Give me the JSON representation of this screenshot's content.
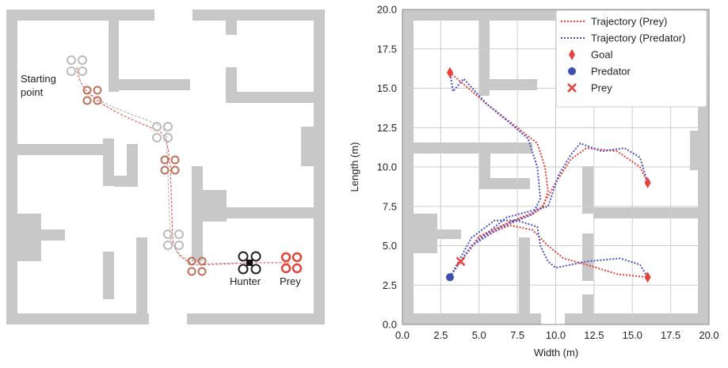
{
  "illustration": {
    "labels": {
      "start": "Starting\npoint",
      "hunter": "Hunter",
      "prey": "Prey"
    }
  },
  "chart_data": {
    "type": "line",
    "xlabel": "Width (m)",
    "ylabel": "Length (m)",
    "xlim": [
      0,
      20
    ],
    "ylim": [
      0,
      20
    ],
    "xticks": [
      {
        "value": 0,
        "label": "0.0"
      },
      2.5,
      {
        "value": 5,
        "label": "5.0"
      },
      7.5,
      {
        "value": 10,
        "label": "10.0"
      },
      12.5,
      {
        "value": 15,
        "label": "15.0"
      },
      17.5,
      {
        "value": 20,
        "label": "20.0"
      }
    ],
    "yticks": [
      {
        "value": 0,
        "label": "0.0"
      },
      2.5,
      {
        "value": 5,
        "label": "5.0"
      },
      7.5,
      {
        "value": 10,
        "label": "10.0"
      },
      12.5,
      {
        "value": 15,
        "label": "15.0"
      },
      17.5,
      {
        "value": 20,
        "label": "20.0"
      }
    ],
    "grid": true,
    "legend": "upper right",
    "series": [
      {
        "name": "Trajectory (Prey)",
        "color": "#e8413a",
        "style": "dotted",
        "x": [
          3.8,
          5,
          7,
          8.5,
          9.2,
          9.5,
          9.3,
          8.8,
          7.5,
          5.5,
          3.1,
          null,
          3.8,
          5,
          7,
          9,
          10,
          11,
          12,
          14,
          15.5,
          16,
          null,
          3.8,
          5,
          7,
          8.5,
          9.5,
          10.5,
          12,
          14,
          16
        ],
        "values": [
          4,
          5.5,
          6.5,
          7,
          7.5,
          8.5,
          10,
          11.5,
          12.5,
          14,
          16,
          null,
          4,
          5.6,
          6.5,
          7.3,
          9,
          10.5,
          11.2,
          11,
          10,
          9,
          null,
          4,
          5.5,
          6.3,
          6,
          5,
          4.2,
          3.8,
          3.2,
          3
        ]
      },
      {
        "name": "Trajectory (Predator)",
        "color": "#4a50c8",
        "style": "dotted",
        "x": [
          3.1,
          4.5,
          6.5,
          8.5,
          9,
          8.8,
          8.2,
          7,
          5.5,
          4,
          3.3,
          3.1,
          null,
          3.1,
          4.5,
          6.8,
          9.5,
          10.2,
          11,
          11.6,
          13,
          14.5,
          15.5,
          16,
          null,
          3.1,
          4.5,
          6,
          7.5,
          8.8,
          9,
          9.5,
          10,
          12,
          14.2,
          15.5,
          16
        ],
        "values": [
          3,
          5,
          6.2,
          7,
          8,
          10,
          11.8,
          12.8,
          14,
          15.6,
          14.8,
          16,
          null,
          3,
          5,
          6.8,
          7.5,
          9.5,
          10.8,
          11.5,
          11,
          11.2,
          10.6,
          9,
          null,
          3,
          5.5,
          6.6,
          6.6,
          6.2,
          5,
          4,
          3.6,
          4,
          4.2,
          3.8,
          3
        ]
      },
      {
        "name": "Goal",
        "color": "#e8413a",
        "marker": "diamond",
        "x": [
          3.1,
          16,
          16
        ],
        "values": [
          16,
          9,
          3
        ]
      },
      {
        "name": "Predator",
        "color": "#3c50b4",
        "marker": "circle",
        "x": [
          3.1
        ],
        "values": [
          3
        ]
      },
      {
        "name": "Prey",
        "color": "#e8413a",
        "marker": "x",
        "x": [
          3.8
        ],
        "values": [
          4
        ]
      }
    ]
  }
}
